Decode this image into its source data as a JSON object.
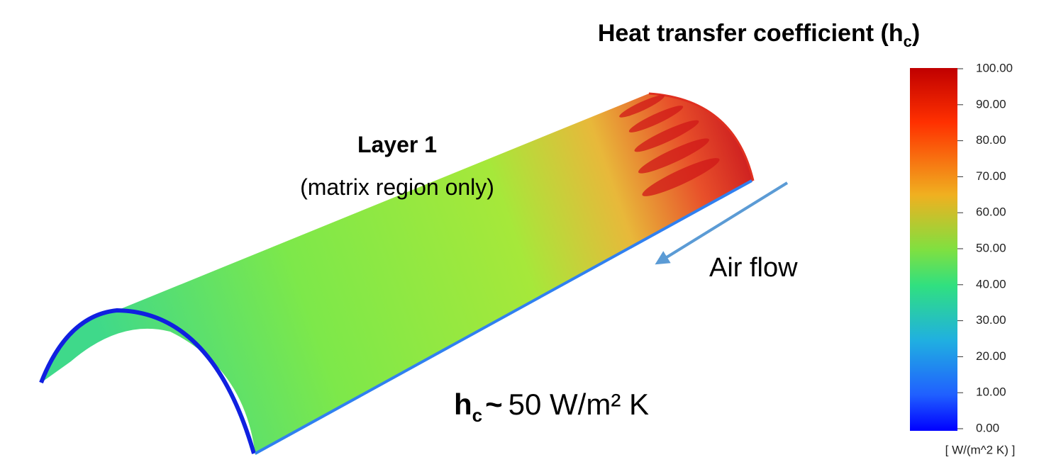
{
  "title": {
    "text": "Heat transfer coefficient (h",
    "subscript": "c",
    "close": ")"
  },
  "layer": {
    "name": "Layer 1",
    "note": "(matrix region only)"
  },
  "flow": {
    "label": "Air flow"
  },
  "estimate": {
    "symbol": "h",
    "subscript": "c",
    "approx": "~",
    "text": "50 W/m² K"
  },
  "colorbar": {
    "ticks": [
      {
        "value": 100,
        "label": "100.00"
      },
      {
        "value": 90,
        "label": "90.00"
      },
      {
        "value": 80,
        "label": "80.00"
      },
      {
        "value": 70,
        "label": "70.00"
      },
      {
        "value": 60,
        "label": "60.00"
      },
      {
        "value": 50,
        "label": "50.00"
      },
      {
        "value": 40,
        "label": "40.00"
      },
      {
        "value": 30,
        "label": "30.00"
      },
      {
        "value": 20,
        "label": "20.00"
      },
      {
        "value": 10,
        "label": "10.00"
      },
      {
        "value": 0,
        "label": "0.00"
      }
    ],
    "unit": "[ W/(m^2 K) ]"
  }
}
